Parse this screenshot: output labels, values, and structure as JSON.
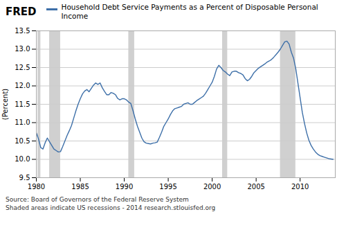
{
  "chart_data": {
    "type": "line",
    "title": "Household Debt Service Payments as a Percent of Disposable Personal Income",
    "ylabel": "(Percent)",
    "annotations": [
      "FRED",
      "Source: Board of Governors of the Federal Reserve System",
      "Shaded areas indicate US recessions - 2014 research.stlouisfed.org"
    ],
    "color": "#3d6fa8",
    "recession_color": "#d0d0d0",
    "recession_bands": [
      [
        1980.17,
        1980.5
      ],
      [
        1981.5,
        1982.75
      ],
      [
        1990.5,
        1991.17
      ],
      [
        2001.17,
        2001.75
      ],
      [
        2007.75,
        2009.5
      ]
    ],
    "xlim": [
      1980,
      2014
    ],
    "xticks": [
      1980,
      1985,
      1990,
      1995,
      2000,
      2005,
      2010
    ],
    "ylim": [
      9.5,
      13.5
    ],
    "yticks": [
      9.5,
      {
        "value": 10,
        "label": "10.0"
      },
      10.5,
      {
        "value": 11,
        "label": "11.0"
      },
      11.5,
      {
        "value": 12,
        "label": "12.0"
      },
      12.5,
      {
        "value": 13,
        "label": "13.0"
      },
      13.5
    ],
    "grid": true,
    "x": [
      1980.0,
      1980.25,
      1980.5,
      1980.75,
      1981.0,
      1981.25,
      1981.5,
      1981.75,
      1982.0,
      1982.25,
      1982.5,
      1982.75,
      1983.0,
      1983.25,
      1983.5,
      1983.75,
      1984.0,
      1984.25,
      1984.5,
      1984.75,
      1985.0,
      1985.25,
      1985.5,
      1985.75,
      1986.0,
      1986.25,
      1986.5,
      1986.75,
      1987.0,
      1987.25,
      1987.5,
      1987.75,
      1988.0,
      1988.25,
      1988.5,
      1988.75,
      1989.0,
      1989.25,
      1989.5,
      1989.75,
      1990.0,
      1990.25,
      1990.5,
      1990.75,
      1991.0,
      1991.25,
      1991.5,
      1991.75,
      1992.0,
      1992.25,
      1992.5,
      1992.75,
      1993.0,
      1993.25,
      1993.5,
      1993.75,
      1994.0,
      1994.25,
      1994.5,
      1994.75,
      1995.0,
      1995.25,
      1995.5,
      1995.75,
      1996.0,
      1996.25,
      1996.5,
      1996.75,
      1997.0,
      1997.25,
      1997.5,
      1997.75,
      1998.0,
      1998.25,
      1998.5,
      1998.75,
      1999.0,
      1999.25,
      1999.5,
      1999.75,
      2000.0,
      2000.25,
      2000.5,
      2000.75,
      2001.0,
      2001.25,
      2001.5,
      2001.75,
      2002.0,
      2002.25,
      2002.5,
      2002.75,
      2003.0,
      2003.25,
      2003.5,
      2003.75,
      2004.0,
      2004.25,
      2004.5,
      2004.75,
      2005.0,
      2005.25,
      2005.5,
      2005.75,
      2006.0,
      2006.25,
      2006.5,
      2006.75,
      2007.0,
      2007.25,
      2007.5,
      2007.75,
      2008.0,
      2008.25,
      2008.5,
      2008.75,
      2009.0,
      2009.25,
      2009.5,
      2009.75,
      2010.0,
      2010.25,
      2010.5,
      2010.75,
      2011.0,
      2011.25,
      2011.5,
      2011.75,
      2012.0,
      2012.25,
      2012.5,
      2012.75,
      2013.0,
      2013.25,
      2013.5,
      2013.75
    ],
    "values": [
      10.72,
      10.55,
      10.32,
      10.28,
      10.45,
      10.58,
      10.48,
      10.38,
      10.28,
      10.24,
      10.2,
      10.21,
      10.35,
      10.5,
      10.65,
      10.78,
      10.92,
      11.12,
      11.32,
      11.5,
      11.65,
      11.78,
      11.86,
      11.9,
      11.84,
      11.93,
      12.02,
      12.08,
      12.04,
      12.08,
      11.95,
      11.85,
      11.76,
      11.76,
      11.82,
      11.8,
      11.76,
      11.66,
      11.62,
      11.65,
      11.65,
      11.62,
      11.56,
      11.52,
      11.32,
      11.1,
      10.9,
      10.74,
      10.58,
      10.48,
      10.44,
      10.43,
      10.42,
      10.44,
      10.45,
      10.47,
      10.6,
      10.74,
      10.9,
      11.0,
      11.1,
      11.22,
      11.32,
      11.38,
      11.4,
      11.42,
      11.44,
      11.5,
      11.52,
      11.54,
      11.5,
      11.5,
      11.55,
      11.6,
      11.64,
      11.68,
      11.72,
      11.8,
      11.9,
      12.0,
      12.1,
      12.26,
      12.46,
      12.56,
      12.5,
      12.42,
      12.38,
      12.32,
      12.28,
      12.38,
      12.4,
      12.4,
      12.36,
      12.34,
      12.3,
      12.2,
      12.14,
      12.18,
      12.26,
      12.36,
      12.42,
      12.48,
      12.52,
      12.56,
      12.6,
      12.65,
      12.68,
      12.72,
      12.78,
      12.85,
      12.92,
      13.0,
      13.1,
      13.2,
      13.22,
      13.14,
      12.92,
      12.76,
      12.48,
      12.08,
      11.68,
      11.28,
      10.98,
      10.72,
      10.52,
      10.38,
      10.28,
      10.2,
      10.14,
      10.1,
      10.08,
      10.06,
      10.04,
      10.02,
      10.01,
      10.0
    ]
  }
}
